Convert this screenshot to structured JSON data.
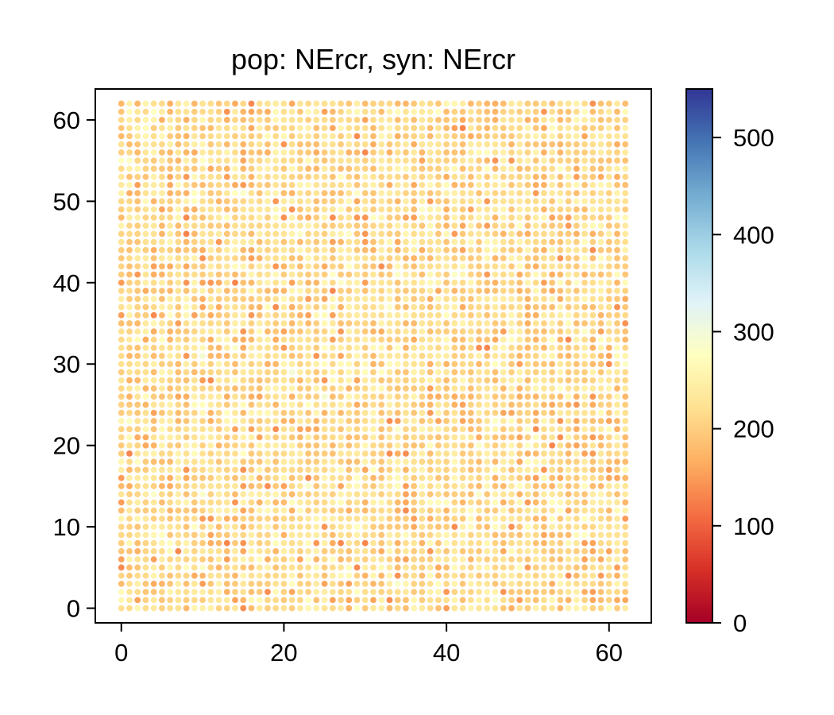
{
  "chart_data": {
    "type": "scatter",
    "title": "pop: NErcr, syn: NErcr",
    "xlabel": "",
    "ylabel": "",
    "xlim": [
      -3.2,
      65.2
    ],
    "ylim": [
      -1.8,
      63.8
    ],
    "x_ticks": [
      0,
      20,
      40,
      60
    ],
    "y_ticks": [
      0,
      10,
      20,
      30,
      40,
      50,
      60
    ],
    "grid": false,
    "legend": "none",
    "grid_points": {
      "x_range": [
        0,
        62
      ],
      "y_range": [
        0,
        62
      ],
      "step": 1,
      "count": 3969
    },
    "value_summary": {
      "typical_min": 130,
      "typical_max": 300,
      "typical_mean": 215
    },
    "colormap": {
      "name": "RdYlBu",
      "vmin": 0,
      "vmax": 550,
      "ticks": [
        0,
        100,
        200,
        300,
        400,
        500
      ],
      "stops": [
        "#a50026",
        "#d73027",
        "#f46d43",
        "#fdae61",
        "#fee090",
        "#ffffbf",
        "#e0f3f8",
        "#abd9e9",
        "#74add1",
        "#4575b4",
        "#313695"
      ]
    }
  }
}
